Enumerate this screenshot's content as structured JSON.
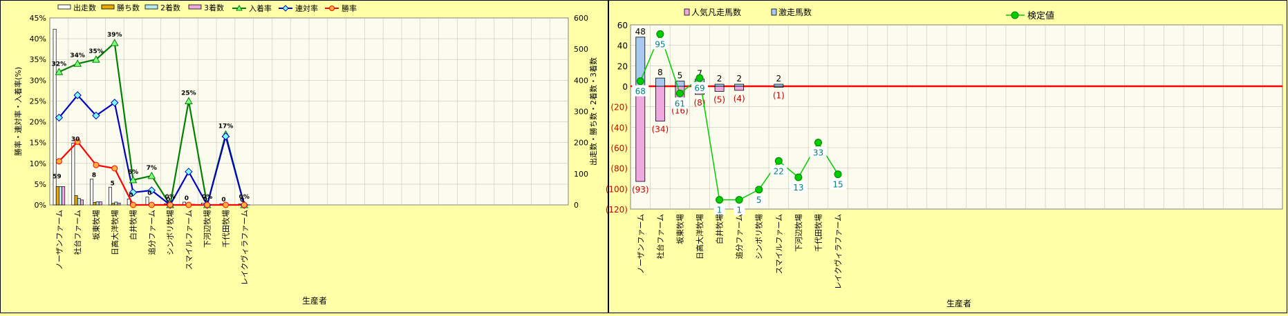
{
  "chart_data": [
    {
      "type": "bar+line",
      "title": "",
      "xlabel": "生産者",
      "ylabel_left": "勝率・連対率・入着率(%)",
      "ylabel_right": "出走数・勝ち数・2着数・3着数",
      "ylim_left": [
        0,
        45
      ],
      "ylim_right": [
        0,
        600
      ],
      "yticks_left": [
        "0%",
        "5%",
        "10%",
        "15%",
        "20%",
        "25%",
        "30%",
        "35%",
        "40%",
        "45%"
      ],
      "yticks_right": [
        "0",
        "100",
        "200",
        "300",
        "400",
        "500",
        "600"
      ],
      "legend_position": "top",
      "categories": [
        "ノーザンファーム",
        "社台ファーム",
        "坂東牧場",
        "日高大洋牧場",
        "白井牧場",
        "追分ファーム",
        "シンボリ牧場",
        "スマイルファーム",
        "下河辺牧場",
        "千代田牧場",
        "レイクヴィラファーム"
      ],
      "bar_series": [
        {
          "name": "出走数",
          "color": "#FFFFFF",
          "values": [
            564,
            198,
            83,
            57,
            19,
            25,
            4,
            9,
            6,
            4,
            3
          ]
        },
        {
          "name": "勝ち数",
          "color": "#E8A800",
          "values": [
            59,
            30,
            8,
            5,
            0,
            0,
            0,
            0,
            0,
            0,
            0
          ]
        },
        {
          "name": "2着数",
          "color": "#B8E8F0",
          "values": [
            59,
            21,
            10,
            9,
            1,
            1,
            0,
            0,
            0,
            1,
            0
          ]
        },
        {
          "name": "3着数",
          "color": "#F0A8E0",
          "values": [
            59,
            16,
            10,
            6,
            0,
            1,
            0,
            2,
            0,
            0,
            0
          ]
        }
      ],
      "line_series": [
        {
          "name": "入着率",
          "color": "#008000",
          "marker": "triangle",
          "values": [
            32,
            34,
            35,
            39,
            6,
            7,
            0,
            25,
            0,
            17,
            0
          ]
        },
        {
          "name": "連対率",
          "color": "#0000C0",
          "marker": "diamond",
          "values": [
            21,
            26.4,
            21.5,
            24.6,
            3,
            3.5,
            0,
            8,
            0,
            16.5,
            0
          ]
        },
        {
          "name": "勝率",
          "color": "#FF0000",
          "marker": "circle",
          "values": [
            10.5,
            15.2,
            9.6,
            8.8,
            0,
            0,
            0,
            0,
            0,
            0,
            0
          ]
        }
      ],
      "data_labels": [
        {
          "series": "入着率",
          "index": 0,
          "text": "32%"
        },
        {
          "series": "入着率",
          "index": 1,
          "text": "34%"
        },
        {
          "series": "入着率",
          "index": 2,
          "text": "35%"
        },
        {
          "series": "入着率",
          "index": 3,
          "text": "39%"
        },
        {
          "series": "入着率",
          "index": 4,
          "text": "6%"
        },
        {
          "series": "入着率",
          "index": 5,
          "text": "7%"
        },
        {
          "series": "入着率",
          "index": 6,
          "text": "0%"
        },
        {
          "series": "入着率",
          "index": 7,
          "text": "25%"
        },
        {
          "series": "入着率",
          "index": 8,
          "text": "0%"
        },
        {
          "series": "入着率",
          "index": 9,
          "text": "17%"
        },
        {
          "series": "入着率",
          "index": 10,
          "text": "0%"
        },
        {
          "series": "勝ち数",
          "index": 0,
          "text": "59"
        },
        {
          "series": "勝ち数",
          "index": 1,
          "text": "30"
        },
        {
          "series": "勝ち数",
          "index": 2,
          "text": "8"
        },
        {
          "series": "勝ち数",
          "index": 3,
          "text": "5"
        },
        {
          "series": "勝ち数",
          "index": 4,
          "text": "0"
        },
        {
          "series": "勝ち数",
          "index": 5,
          "text": "0"
        },
        {
          "series": "勝ち数",
          "index": 6,
          "text": "0"
        },
        {
          "series": "勝ち数",
          "index": 7,
          "text": "0"
        },
        {
          "series": "勝ち数",
          "index": 8,
          "text": "0"
        },
        {
          "series": "勝ち数",
          "index": 9,
          "text": "0"
        },
        {
          "series": "勝ち数",
          "index": 10,
          "text": "0"
        }
      ]
    },
    {
      "type": "bar+line",
      "title": "",
      "xlabel": "生産者",
      "ylim": [
        -120,
        60
      ],
      "yticks": [
        "60",
        "40",
        "20",
        "0",
        "(20)",
        "(40)",
        "(60)",
        "(80)",
        "(100)",
        "(120)"
      ],
      "legend_position": "top",
      "categories": [
        "ノーザンファーム",
        "社台ファーム",
        "坂東牧場",
        "日高大洋牧場",
        "白井牧場",
        "追分ファーム",
        "シンボリ牧場",
        "スマイルファーム",
        "下河辺牧場",
        "千代田牧場",
        "レイクヴィラファーム"
      ],
      "bar_series": [
        {
          "name": "人気凡走馬数",
          "color": "#F0A8E0",
          "values": [
            -93,
            -34,
            -16,
            -8,
            -5,
            -4,
            0,
            -1,
            0,
            0,
            0
          ],
          "labels": [
            "(93)",
            "(34)",
            "(16)",
            "(8)",
            "(5)",
            "(4)",
            "",
            "(1)",
            "",
            "",
            ""
          ]
        },
        {
          "name": "激走馬数",
          "color": "#A8C8F0",
          "values": [
            48,
            8,
            5,
            7,
            2,
            2,
            0,
            2,
            0,
            0,
            0
          ],
          "labels": [
            "48",
            "8",
            "5",
            "7",
            "2",
            "2",
            "",
            "2",
            "",
            "",
            ""
          ]
        }
      ],
      "line_series": [
        {
          "name": "検定値",
          "color": "#00CC00",
          "marker": "circle",
          "values": [
            5,
            51,
            -7,
            8,
            -111,
            -111,
            -101,
            -73,
            -89,
            -55,
            -86
          ],
          "labels": [
            "68",
            "95",
            "61",
            "69",
            "1",
            "1",
            "5",
            "22",
            "13",
            "33",
            "15"
          ]
        }
      ],
      "reference_line": {
        "value": 0,
        "color": "#FF0000"
      }
    }
  ]
}
